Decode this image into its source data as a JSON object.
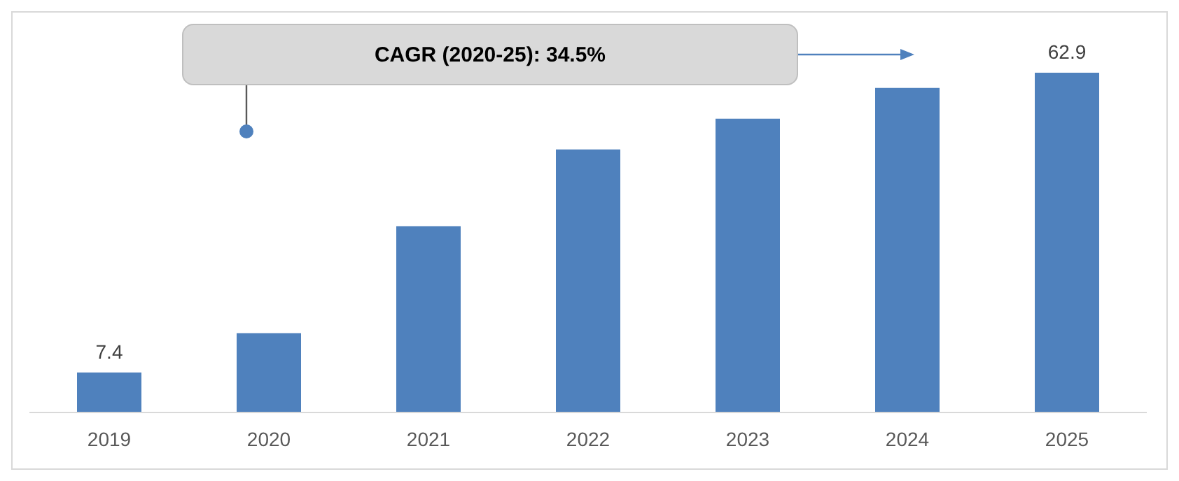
{
  "chart_data": {
    "type": "bar",
    "categories": [
      "2019",
      "2020",
      "2021",
      "2022",
      "2023",
      "2024",
      "2025"
    ],
    "values": [
      7.4,
      14.7,
      34.5,
      48.7,
      54.4,
      60.1,
      62.9
    ],
    "value_labels": [
      "7.4",
      null,
      null,
      null,
      null,
      null,
      "62.9"
    ],
    "color": "#4f81bd",
    "grid": false,
    "legend": false,
    "annotations": [
      "CAGR (2020-25): 34.5%"
    ]
  }
}
